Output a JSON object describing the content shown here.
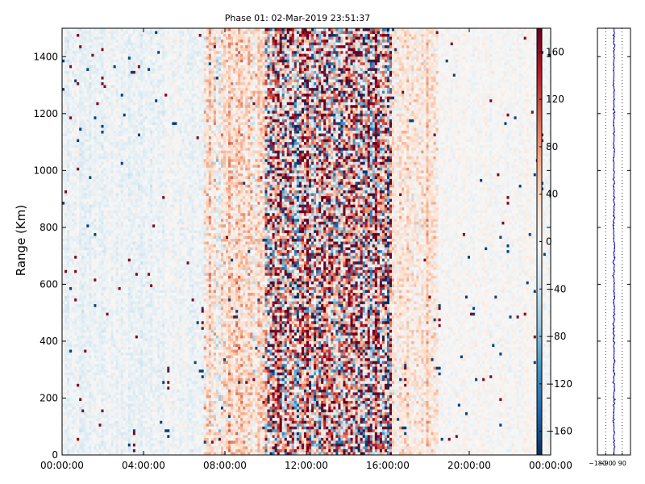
{
  "chart_data": [
    {
      "type": "heatmap",
      "title": "Phase 01: 02-Mar-2019 23:51:37",
      "xlabel": "",
      "ylabel": "Range (Km)",
      "x_ticks": [
        "00:00:00",
        "04:00:00",
        "08:00:00",
        "12:00:00",
        "16:00:00",
        "20:00:00",
        "00:00:00"
      ],
      "x_tick_hours": [
        0,
        4,
        8,
        12,
        16,
        20,
        24
      ],
      "y_ticks": [
        0,
        200,
        400,
        600,
        800,
        1000,
        1200,
        1400
      ],
      "xlim_hours": [
        0,
        24
      ],
      "ylim": [
        0,
        1500
      ],
      "colormap": "RdBu_r",
      "colorbar": {
        "vmin": -180,
        "vmax": 180,
        "ticks": [
          160,
          120,
          80,
          40,
          0,
          -40,
          -80,
          -120,
          -160
        ],
        "tick_labels": [
          "160",
          "120",
          "80",
          "40",
          "0",
          "−40",
          "−80",
          "−120",
          "−160"
        ],
        "colors": {
          "low": "#053061",
          "mid": "#f7f7f7",
          "high": "#67001f"
        }
      },
      "zones": [
        {
          "from_hour": 0,
          "to_hour": 7,
          "mean_phase": -10,
          "spread": 18
        },
        {
          "from_hour": 7,
          "to_hour": 10,
          "mean_phase": 25,
          "spread": 55
        },
        {
          "from_hour": 10,
          "to_hour": 16.2,
          "mean_phase": 40,
          "spread": 190
        },
        {
          "from_hour": 16.2,
          "to_hour": 18.5,
          "mean_phase": 22,
          "spread": 40
        },
        {
          "from_hour": 18.5,
          "to_hour": 24,
          "mean_phase": 0,
          "spread": 14
        }
      ],
      "grid": false
    },
    {
      "type": "line",
      "title": "",
      "x_ticks": [
        -180,
        -90,
        0,
        90
      ],
      "x_tick_labels": [
        "−180",
        "−90",
        "0",
        "90"
      ],
      "xlim": [
        -180,
        180
      ],
      "ylim": [
        0,
        1500
      ],
      "profile_mean_phase": 0,
      "profile_jitter": 6,
      "line_color": "#0000cc",
      "guides": "dotted vertical lines at x ticks"
    }
  ]
}
